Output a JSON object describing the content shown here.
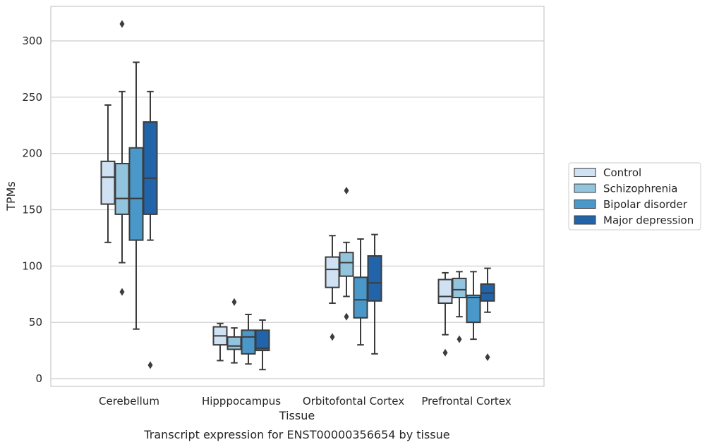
{
  "caption": "Transcript expression for ENST00000356654 by tissue",
  "chart_data": {
    "type": "box",
    "xlabel": "Tissue",
    "ylabel": "TPMs",
    "ylim": [
      -6,
      332
    ],
    "yticks": [
      0,
      50,
      100,
      150,
      200,
      250,
      300
    ],
    "grid": "horizontal",
    "legend_placement": "right",
    "categories": [
      "Cerebellum",
      "Hipppocampus",
      "Orbitofontal Cortex",
      "Prefrontal Cortex"
    ],
    "series": [
      {
        "name": "Control",
        "color": "#cfe1f2",
        "boxes": [
          {
            "whisker_low": 121,
            "q1": 155,
            "median": 179,
            "q3": 193,
            "whisker_high": 243,
            "outliers": []
          },
          {
            "whisker_low": 16,
            "q1": 30,
            "median": 38,
            "q3": 46,
            "whisker_high": 49,
            "outliers": []
          },
          {
            "whisker_low": 67,
            "q1": 81,
            "median": 97,
            "q3": 108,
            "whisker_high": 127,
            "outliers": [
              37
            ]
          },
          {
            "whisker_low": 39,
            "q1": 67,
            "median": 73,
            "q3": 88,
            "whisker_high": 94,
            "outliers": [
              23
            ]
          }
        ]
      },
      {
        "name": "Schizophrenia",
        "color": "#93c4de",
        "boxes": [
          {
            "whisker_low": 103,
            "q1": 146,
            "median": 160,
            "q3": 191,
            "whisker_high": 255,
            "outliers": [
              315,
              77
            ]
          },
          {
            "whisker_low": 14,
            "q1": 26,
            "median": 29,
            "q3": 37,
            "whisker_high": 45,
            "outliers": [
              68
            ]
          },
          {
            "whisker_low": 73,
            "q1": 91,
            "median": 103,
            "q3": 112,
            "whisker_high": 121,
            "outliers": [
              167,
              55
            ]
          },
          {
            "whisker_low": 55,
            "q1": 72,
            "median": 79,
            "q3": 89,
            "whisker_high": 95,
            "outliers": [
              35
            ]
          }
        ]
      },
      {
        "name": "Bipolar disorder",
        "color": "#4a98c9",
        "boxes": [
          {
            "whisker_low": 44,
            "q1": 123,
            "median": 160,
            "q3": 205,
            "whisker_high": 281,
            "outliers": []
          },
          {
            "whisker_low": 13,
            "q1": 22,
            "median": 37,
            "q3": 43,
            "whisker_high": 57,
            "outliers": []
          },
          {
            "whisker_low": 30,
            "q1": 54,
            "median": 70,
            "q3": 90,
            "whisker_high": 124,
            "outliers": []
          },
          {
            "whisker_low": 35,
            "q1": 50,
            "median": 72,
            "q3": 74,
            "whisker_high": 95,
            "outliers": []
          }
        ]
      },
      {
        "name": "Major depression",
        "color": "#2264aa",
        "boxes": [
          {
            "whisker_low": 123,
            "q1": 146,
            "median": 178,
            "q3": 228,
            "whisker_high": 255,
            "outliers": [
              12
            ]
          },
          {
            "whisker_low": 8,
            "q1": 25,
            "median": 27,
            "q3": 43,
            "whisker_high": 52,
            "outliers": []
          },
          {
            "whisker_low": 22,
            "q1": 69,
            "median": 85,
            "q3": 109,
            "whisker_high": 128,
            "outliers": []
          },
          {
            "whisker_low": 59,
            "q1": 69,
            "median": 76,
            "q3": 84,
            "whisker_high": 98,
            "outliers": [
              19
            ]
          }
        ]
      }
    ]
  }
}
